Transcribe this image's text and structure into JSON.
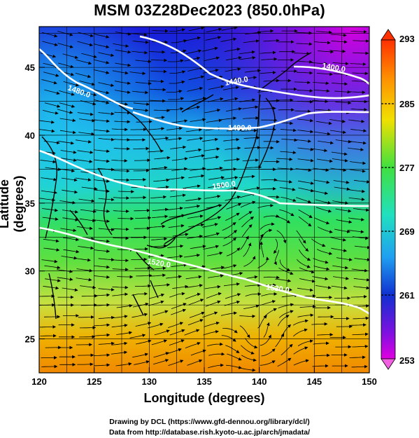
{
  "title": "MSM 03Z28Dec2023 (850.0hPa)",
  "axes": {
    "xlabel": "Longitude (degrees)",
    "ylabel": "Latitude  (degrees)",
    "x_ticks": [
      "120",
      "125",
      "130",
      "135",
      "140",
      "145",
      "150"
    ],
    "y_ticks": [
      "25",
      "30",
      "35",
      "40",
      "45"
    ]
  },
  "colorbar": {
    "ticks": [
      "293",
      "285",
      "277",
      "269",
      "261",
      "253"
    ]
  },
  "contours": [
    {
      "label": "1480.0"
    },
    {
      "label": "1440.0"
    },
    {
      "label": "1400.0"
    },
    {
      "label": "1490.0"
    },
    {
      "label": "1500.0"
    },
    {
      "label": "1520.0"
    },
    {
      "label": "1530.0"
    }
  ],
  "credits": {
    "line1": "Drawing by DCL (https://www.gfd-dennou.org/library/dcl/)",
    "line2": "Data from http://database.rish.kyoto-u.ac.jp/arch/jmadata/"
  },
  "colors": {
    "cold": "#e000e0",
    "cool": "#1030d0",
    "mild": "#20d0e0",
    "warm": "#30d040",
    "hot": "#f0a000",
    "contour": "#ffffff"
  },
  "icons": {
    "colorbar_top": "triangle-up-icon",
    "colorbar_bottom": "triangle-down-icon"
  }
}
